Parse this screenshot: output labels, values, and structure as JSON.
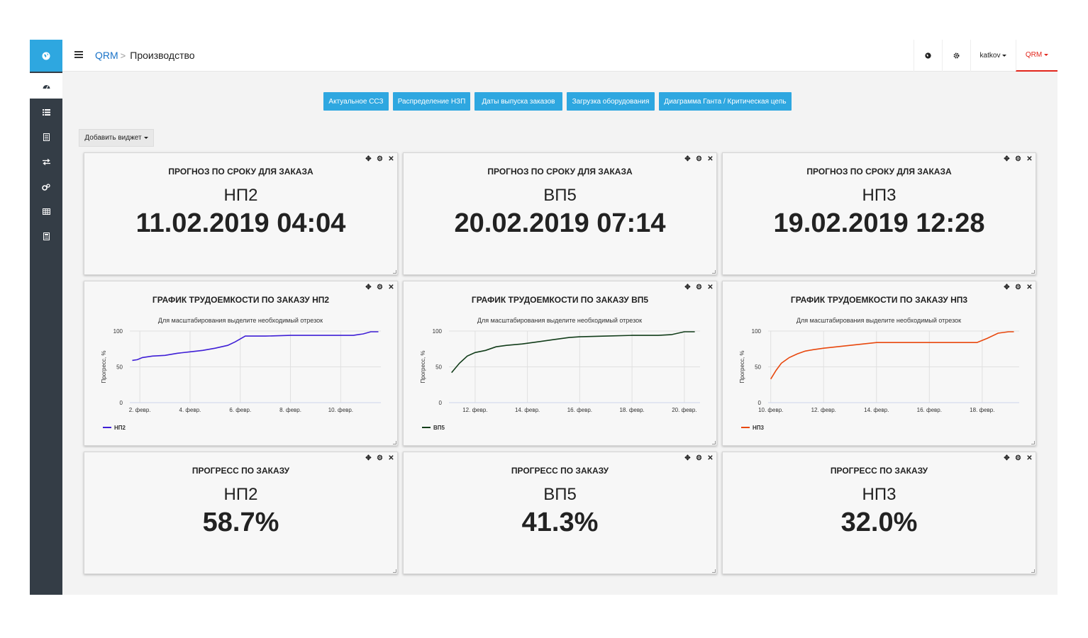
{
  "header": {
    "breadcrumb_root": "QRM",
    "breadcrumb_current": "Производство",
    "user": "katkov",
    "app_menu": "QRM"
  },
  "colors": {
    "accent": "#2ea7e0",
    "sidebar": "#343d46",
    "active_tab": "#e2251b"
  },
  "sidebar": {
    "items": [
      {
        "icon": "dashboard-icon"
      },
      {
        "icon": "list-icon"
      },
      {
        "icon": "document-icon"
      },
      {
        "icon": "exchange-icon"
      },
      {
        "icon": "cogs-icon"
      },
      {
        "icon": "table-icon"
      },
      {
        "icon": "calculator-icon"
      }
    ]
  },
  "tabs": [
    {
      "label": "Актуальное ССЗ"
    },
    {
      "label": "Распределение НЗП"
    },
    {
      "label": "Даты выпуска заказов"
    },
    {
      "label": "Загрузка оборудования"
    },
    {
      "label": "Диаграмма Ганта / Критическая цепь"
    }
  ],
  "add_widget_label": "Добавить виджет",
  "forecast_widgets": [
    {
      "title": "ПРОГНОЗ ПО СРОКУ ДЛЯ ЗАКАЗА",
      "order": "НП2",
      "value": "11.02.2019 04:04"
    },
    {
      "title": "ПРОГНОЗ ПО СРОКУ ДЛЯ ЗАКАЗА",
      "order": "ВП5",
      "value": "20.02.2019 07:14"
    },
    {
      "title": "ПРОГНОЗ ПО СРОКУ ДЛЯ ЗАКАЗА",
      "order": "НП3",
      "value": "19.02.2019 12:28"
    }
  ],
  "progress_widgets": [
    {
      "title": "ПРОГРЕСС ПО ЗАКАЗУ",
      "order": "НП2",
      "value": "58.7%"
    },
    {
      "title": "ПРОГРЕСС ПО ЗАКАЗУ",
      "order": "ВП5",
      "value": "41.3%"
    },
    {
      "title": "ПРОГРЕСС ПО ЗАКАЗУ",
      "order": "НП3",
      "value": "32.0%"
    }
  ],
  "chart_data": [
    {
      "type": "line",
      "title": "ГРАФИК ТРУДОЕМКОСТИ ПО ЗАКАЗУ НП2",
      "subtitle": "Для масштабирования выделите необходимый отрезок",
      "ylabel": "Прогресс, %",
      "ylim": [
        0,
        100
      ],
      "yticks": [
        "0",
        "50",
        "100"
      ],
      "xlim": [
        1.6,
        11.6
      ],
      "xticks": [
        {
          "x": 2,
          "label": "2. февр."
        },
        {
          "x": 4,
          "label": "4. февр."
        },
        {
          "x": 6,
          "label": "6. февр."
        },
        {
          "x": 8,
          "label": "8. февр."
        },
        {
          "x": 10,
          "label": "10. февр."
        }
      ],
      "series": [
        {
          "name": "НП2",
          "color": "#3f1fd6",
          "x": [
            1.7,
            1.9,
            2.1,
            2.5,
            3.0,
            3.5,
            4.0,
            4.5,
            5.0,
            5.5,
            5.8,
            6.2,
            7.0,
            8.0,
            9.0,
            10.0,
            10.5,
            10.9,
            11.2,
            11.5
          ],
          "values": [
            59,
            60,
            63,
            65,
            66,
            69,
            71,
            73,
            76,
            80,
            85,
            93,
            93,
            94,
            94,
            94,
            94,
            96,
            99,
            99
          ]
        }
      ]
    },
    {
      "type": "line",
      "title": "ГРАФИК ТРУДОЕМКОСТИ ПО ЗАКАЗУ ВП5",
      "subtitle": "Для масштабирования выделите необходимый отрезок",
      "ylabel": "Прогресс, %",
      "ylim": [
        0,
        100
      ],
      "yticks": [
        "0",
        "50",
        "100"
      ],
      "xlim": [
        11.0,
        20.6
      ],
      "xticks": [
        {
          "x": 12,
          "label": "12. февр."
        },
        {
          "x": 14,
          "label": "14. февр."
        },
        {
          "x": 16,
          "label": "16. февр."
        },
        {
          "x": 18,
          "label": "18. февр."
        },
        {
          "x": 20,
          "label": "20. февр."
        }
      ],
      "series": [
        {
          "name": "ВП5",
          "color": "#123d1a",
          "x": [
            11.1,
            11.4,
            11.7,
            12.0,
            12.4,
            12.8,
            13.2,
            13.8,
            14.4,
            15.0,
            15.6,
            16.0,
            17.0,
            18.0,
            18.6,
            19.0,
            19.5,
            20.0,
            20.4
          ],
          "values": [
            42,
            55,
            65,
            70,
            73,
            78,
            80,
            82,
            85,
            88,
            91,
            92,
            93,
            94,
            94,
            94,
            95,
            99,
            99
          ]
        }
      ]
    },
    {
      "type": "line",
      "title": "ГРАФИК ТРУДОЕМКОСТИ ПО ЗАКАЗУ НП3",
      "subtitle": "Для масштабирования выделите необходимый отрезок",
      "ylabel": "Прогресс, %",
      "ylim": [
        0,
        100
      ],
      "yticks": [
        "0",
        "50",
        "100"
      ],
      "xlim": [
        9.9,
        19.4
      ],
      "xticks": [
        {
          "x": 10,
          "label": "10. февр."
        },
        {
          "x": 12,
          "label": "12. февр."
        },
        {
          "x": 14,
          "label": "14. февр."
        },
        {
          "x": 16,
          "label": "16. февр."
        },
        {
          "x": 18,
          "label": "18. февр."
        }
      ],
      "series": [
        {
          "name": "НП3",
          "color": "#e8480e",
          "x": [
            10.0,
            10.2,
            10.4,
            10.7,
            11.0,
            11.3,
            11.6,
            12.0,
            12.5,
            13.0,
            13.5,
            14.0,
            15.0,
            16.0,
            17.0,
            17.8,
            18.2,
            18.6,
            19.0,
            19.2
          ],
          "values": [
            33,
            45,
            55,
            63,
            68,
            72,
            74,
            76,
            78,
            80,
            82,
            84,
            84,
            84,
            84,
            84,
            90,
            97,
            99,
            99
          ]
        }
      ]
    }
  ]
}
